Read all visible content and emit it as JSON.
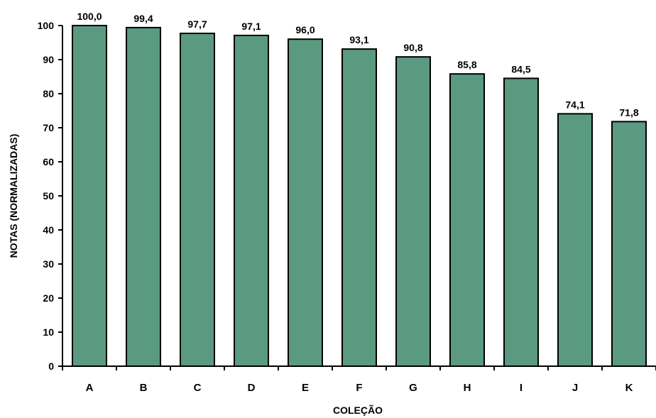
{
  "chart_data": {
    "type": "bar",
    "xlabel": "COLEÇÃO",
    "ylabel": "NOTAS  (NORMALIZADAS)",
    "categories": [
      "A",
      "B",
      "C",
      "D",
      "E",
      "F",
      "G",
      "H",
      "I",
      "J",
      "K"
    ],
    "values": [
      100.0,
      99.4,
      97.7,
      97.1,
      96.0,
      93.1,
      90.8,
      85.8,
      84.5,
      74.1,
      71.8
    ],
    "data_labels": [
      "100,0",
      "99,4",
      "97,7",
      "97,1",
      "96,0",
      "93,1",
      "90,8",
      "85,8",
      "84,5",
      "74,1",
      "71,8"
    ],
    "ylim": [
      0,
      100
    ],
    "yticks": [
      "0",
      "10",
      "20",
      "30",
      "40",
      "50",
      "60",
      "70",
      "80",
      "90",
      "100"
    ],
    "grid": false,
    "legend": "none",
    "bar_color": "#5a9a80",
    "bar_edge_color": "#000000"
  }
}
